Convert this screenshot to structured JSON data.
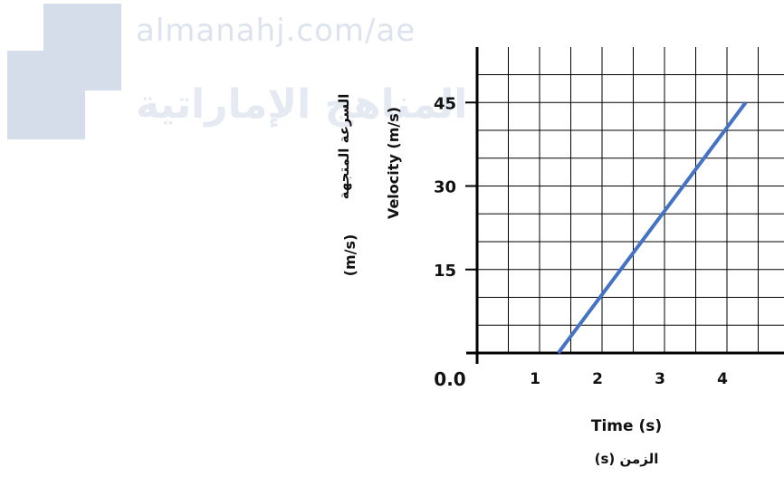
{
  "watermark": {
    "url": "almanahj.com/ae",
    "arabic": "المناهج الإماراتية",
    "color": "#d5ddea"
  },
  "chart_data": {
    "type": "line",
    "x_label": "Time (s)",
    "x_label_ar": "الزمن (s)",
    "y_label": "Velocity (m/s)",
    "y_label_ar": "السرعة المتجهة",
    "y_label_ar_unit": "(m/s)",
    "origin_label": "0.0",
    "x_ticks": [
      "1",
      "2",
      "3",
      "4"
    ],
    "y_ticks": [
      "15",
      "30",
      "45"
    ],
    "xlim": [
      0,
      4.8
    ],
    "ylim": [
      -0.5,
      54
    ],
    "grid": true,
    "series": [
      {
        "x": [
          1.3,
          4.3
        ],
        "y": [
          0,
          45
        ],
        "color": "#4472c4"
      }
    ]
  }
}
